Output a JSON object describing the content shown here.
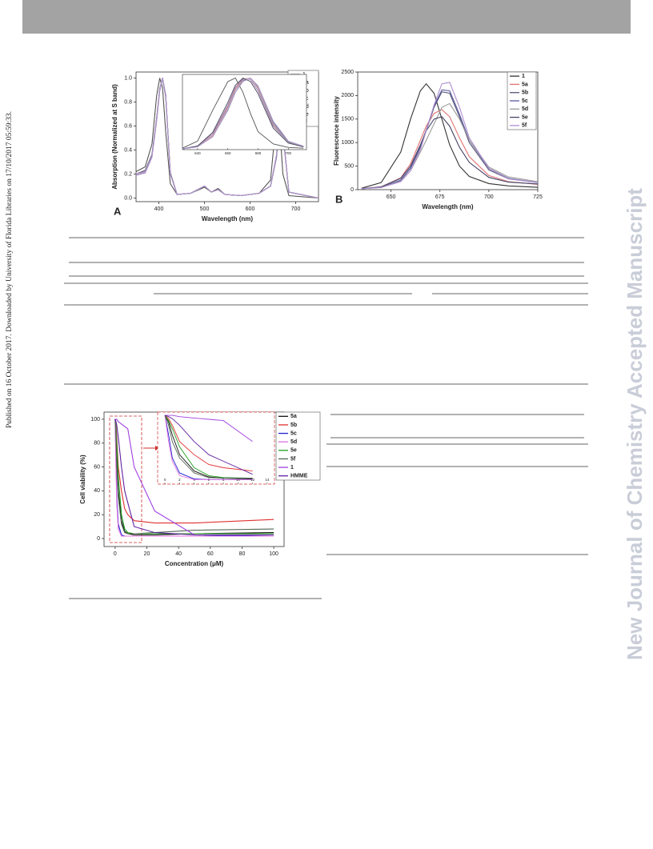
{
  "side_note": "Published on 16 October 2017. Downloaded by University of Florida Libraries on 17/10/2017 05:59:33.",
  "watermark": "New Journal of Chemistry Accepted Manuscript",
  "chart_data": [
    {
      "type": "line",
      "panel": "A",
      "xlabel": "Wavelength (nm)",
      "ylabel": "Absorption (Normalized at S band)",
      "xlim": [
        350,
        750
      ],
      "ylim": [
        -0.03,
        1.05
      ],
      "xticks": [
        400,
        500,
        600,
        700
      ],
      "yticks": [
        {
          "value": 0,
          "label": "0.0"
        },
        {
          "value": 0.2,
          "label": "0.2"
        },
        {
          "value": 0.4,
          "label": "0.4"
        },
        {
          "value": 0.6,
          "label": "0.6"
        },
        {
          "value": 0.8,
          "label": "0.8"
        },
        {
          "value": 1,
          "label": "1.0"
        }
      ],
      "x": [
        350,
        370,
        385,
        395,
        402,
        408,
        415,
        425,
        440,
        470,
        500,
        515,
        530,
        545,
        580,
        620,
        645,
        658,
        665,
        672,
        685,
        750
      ],
      "series": [
        {
          "name": "1",
          "color": "#555555",
          "values": [
            0.22,
            0.26,
            0.45,
            0.85,
            1.0,
            0.92,
            0.55,
            0.12,
            0.03,
            0.04,
            0.09,
            0.05,
            0.08,
            0.03,
            0.02,
            0.04,
            0.15,
            0.68,
            0.6,
            0.2,
            0.02,
            0.0
          ]
        },
        {
          "name": "5a",
          "color": "#e07a7a",
          "values": [
            0.2,
            0.22,
            0.35,
            0.65,
            0.9,
            1.0,
            0.85,
            0.2,
            0.03,
            0.04,
            0.1,
            0.05,
            0.07,
            0.03,
            0.02,
            0.04,
            0.1,
            0.35,
            0.68,
            0.55,
            0.05,
            0.0
          ]
        },
        {
          "name": "5b",
          "color": "#6a6a8a",
          "values": [
            0.2,
            0.22,
            0.36,
            0.66,
            0.9,
            1.0,
            0.86,
            0.21,
            0.03,
            0.04,
            0.1,
            0.05,
            0.07,
            0.03,
            0.02,
            0.04,
            0.1,
            0.36,
            0.7,
            0.56,
            0.05,
            0.0
          ]
        },
        {
          "name": "5c",
          "color": "#9a7ab8",
          "values": [
            0.19,
            0.21,
            0.34,
            0.64,
            0.89,
            1.0,
            0.84,
            0.2,
            0.03,
            0.04,
            0.1,
            0.05,
            0.07,
            0.03,
            0.02,
            0.04,
            0.1,
            0.34,
            0.66,
            0.54,
            0.05,
            0.0
          ]
        },
        {
          "name": "5d",
          "color": "#aaaaaa",
          "values": [
            0.2,
            0.22,
            0.35,
            0.65,
            0.9,
            1.0,
            0.85,
            0.2,
            0.03,
            0.04,
            0.1,
            0.05,
            0.07,
            0.03,
            0.02,
            0.04,
            0.1,
            0.35,
            0.69,
            0.55,
            0.05,
            0.0
          ]
        },
        {
          "name": "5e",
          "color": "#444455",
          "values": [
            0.2,
            0.23,
            0.36,
            0.66,
            0.91,
            1.0,
            0.85,
            0.21,
            0.03,
            0.04,
            0.1,
            0.05,
            0.07,
            0.03,
            0.02,
            0.04,
            0.1,
            0.35,
            0.67,
            0.55,
            0.05,
            0.0
          ]
        },
        {
          "name": "5f",
          "color": "#b59ad4",
          "values": [
            0.2,
            0.22,
            0.35,
            0.65,
            0.9,
            1.0,
            0.86,
            0.2,
            0.03,
            0.04,
            0.1,
            0.05,
            0.07,
            0.03,
            0.02,
            0.04,
            0.1,
            0.36,
            0.7,
            0.56,
            0.05,
            0.0
          ]
        }
      ],
      "inset": {
        "xlim": [
          630,
          712
        ],
        "ylim": [
          0,
          1.05
        ],
        "xticks": [
          640,
          660,
          680,
          700
        ],
        "x": [
          630,
          640,
          650,
          660,
          665,
          670,
          675,
          680,
          690,
          700,
          710
        ],
        "series": [
          {
            "color": "#555555",
            "values": [
              0.02,
              0.12,
              0.55,
              0.95,
              1.0,
              0.8,
              0.5,
              0.25,
              0.08,
              0.03,
              0.02
            ]
          },
          {
            "color": "#e07a7a",
            "values": [
              0.01,
              0.04,
              0.2,
              0.6,
              0.85,
              0.98,
              1.0,
              0.85,
              0.35,
              0.1,
              0.04
            ]
          },
          {
            "color": "#6a6a8a",
            "values": [
              0.01,
              0.04,
              0.18,
              0.55,
              0.8,
              0.96,
              1.0,
              0.88,
              0.38,
              0.11,
              0.04
            ]
          },
          {
            "color": "#9a7ab8",
            "values": [
              0.01,
              0.05,
              0.22,
              0.62,
              0.87,
              0.99,
              0.98,
              0.82,
              0.33,
              0.1,
              0.04
            ]
          },
          {
            "color": "#aaaaaa",
            "values": [
              0.01,
              0.04,
              0.19,
              0.58,
              0.83,
              0.97,
              1.0,
              0.86,
              0.36,
              0.1,
              0.04
            ]
          },
          {
            "color": "#444455",
            "values": [
              0.01,
              0.05,
              0.24,
              0.66,
              0.9,
              1.0,
              0.95,
              0.78,
              0.3,
              0.09,
              0.04
            ]
          },
          {
            "color": "#b59ad4",
            "values": [
              0.01,
              0.04,
              0.18,
              0.56,
              0.8,
              0.95,
              1.0,
              0.89,
              0.4,
              0.12,
              0.05
            ]
          }
        ]
      }
    },
    {
      "type": "line",
      "panel": "B",
      "xlabel": "Wavelength (nm)",
      "ylabel": "Fluorescence intensity",
      "xlim": [
        633,
        725
      ],
      "ylim": [
        0,
        2500
      ],
      "xticks": [
        650,
        675,
        700,
        725
      ],
      "yticks": [
        0,
        500,
        1000,
        1500,
        2000,
        2500
      ],
      "x": [
        635,
        645,
        655,
        660,
        665,
        668,
        672,
        676,
        680,
        685,
        690,
        700,
        710,
        725
      ],
      "series": [
        {
          "name": "1",
          "color": "#333333",
          "values": [
            30,
            150,
            800,
            1500,
            2100,
            2250,
            2050,
            1500,
            950,
            500,
            280,
            130,
            80,
            50
          ]
        },
        {
          "name": "5a",
          "color": "#e07070",
          "values": [
            20,
            60,
            250,
            550,
            1050,
            1350,
            1620,
            1700,
            1550,
            1100,
            700,
            300,
            170,
            110
          ]
        },
        {
          "name": "5b",
          "color": "#555577",
          "values": [
            20,
            50,
            200,
            450,
            900,
            1250,
            1750,
            2080,
            2050,
            1550,
            1000,
            420,
            230,
            150
          ]
        },
        {
          "name": "5c",
          "color": "#5a5aa0",
          "values": [
            20,
            50,
            200,
            460,
            920,
            1270,
            1780,
            2120,
            2100,
            1600,
            1050,
            450,
            240,
            150
          ]
        },
        {
          "name": "5d",
          "color": "#999999",
          "values": [
            20,
            50,
            180,
            400,
            800,
            1050,
            1400,
            1750,
            1830,
            1500,
            1050,
            480,
            270,
            170
          ]
        },
        {
          "name": "5e",
          "color": "#444466",
          "values": [
            20,
            60,
            240,
            500,
            950,
            1250,
            1500,
            1550,
            1350,
            900,
            580,
            260,
            160,
            120
          ]
        },
        {
          "name": "5f",
          "color": "#b08fd0",
          "values": [
            20,
            45,
            170,
            400,
            850,
            1250,
            1800,
            2250,
            2280,
            1750,
            1100,
            450,
            230,
            150
          ]
        }
      ]
    },
    {
      "type": "line",
      "xlabel": "Concentration (μM)",
      "ylabel": "Cell viability (%)",
      "xlim": [
        -7,
        106.5
      ],
      "ylim": [
        -6.7,
        106
      ],
      "xticks": [
        0,
        20,
        40,
        60,
        80,
        100
      ],
      "yticks": [
        0,
        20,
        40,
        60,
        80,
        100
      ],
      "x": [
        0,
        0.5,
        1,
        2,
        4,
        6,
        8,
        12,
        25,
        50,
        100
      ],
      "series": [
        {
          "name": "5a",
          "color": "#111111",
          "values": [
            100,
            90,
            70,
            40,
            15,
            6,
            4,
            3,
            3,
            4,
            5
          ]
        },
        {
          "name": "5b",
          "color": "#e03030",
          "values": [
            100,
            95,
            85,
            60,
            40,
            25,
            20,
            15,
            13,
            13,
            16
          ]
        },
        {
          "name": "5c",
          "color": "#2020d0",
          "values": [
            100,
            70,
            35,
            12,
            3,
            2,
            2,
            2,
            2,
            2,
            3
          ]
        },
        {
          "name": "5d",
          "color": "#e070e0",
          "values": [
            100,
            60,
            30,
            8,
            2,
            2,
            2,
            2,
            2,
            2,
            2
          ]
        },
        {
          "name": "5e",
          "color": "#20a020",
          "values": [
            100,
            92,
            80,
            52,
            20,
            8,
            5,
            4,
            4,
            4,
            4
          ]
        },
        {
          "name": "5f",
          "color": "#556655",
          "values": [
            100,
            85,
            60,
            35,
            12,
            5,
            4,
            4,
            5,
            7,
            8
          ]
        },
        {
          "name": "1",
          "color": "#a040e0",
          "values": [
            100,
            100,
            100,
            98,
            96,
            94,
            92,
            60,
            23,
            3,
            3
          ]
        },
        {
          "name": "HMME",
          "color": "#6020a0",
          "values": [
            100,
            98,
            95,
            85,
            60,
            40,
            30,
            10,
            5,
            3,
            3
          ]
        }
      ],
      "inset": {
        "xlim": [
          -1,
          15
        ],
        "ylim": [
          -5,
          105
        ],
        "xticks": [
          0,
          2,
          4,
          6,
          8,
          10,
          12,
          14
        ]
      }
    }
  ]
}
